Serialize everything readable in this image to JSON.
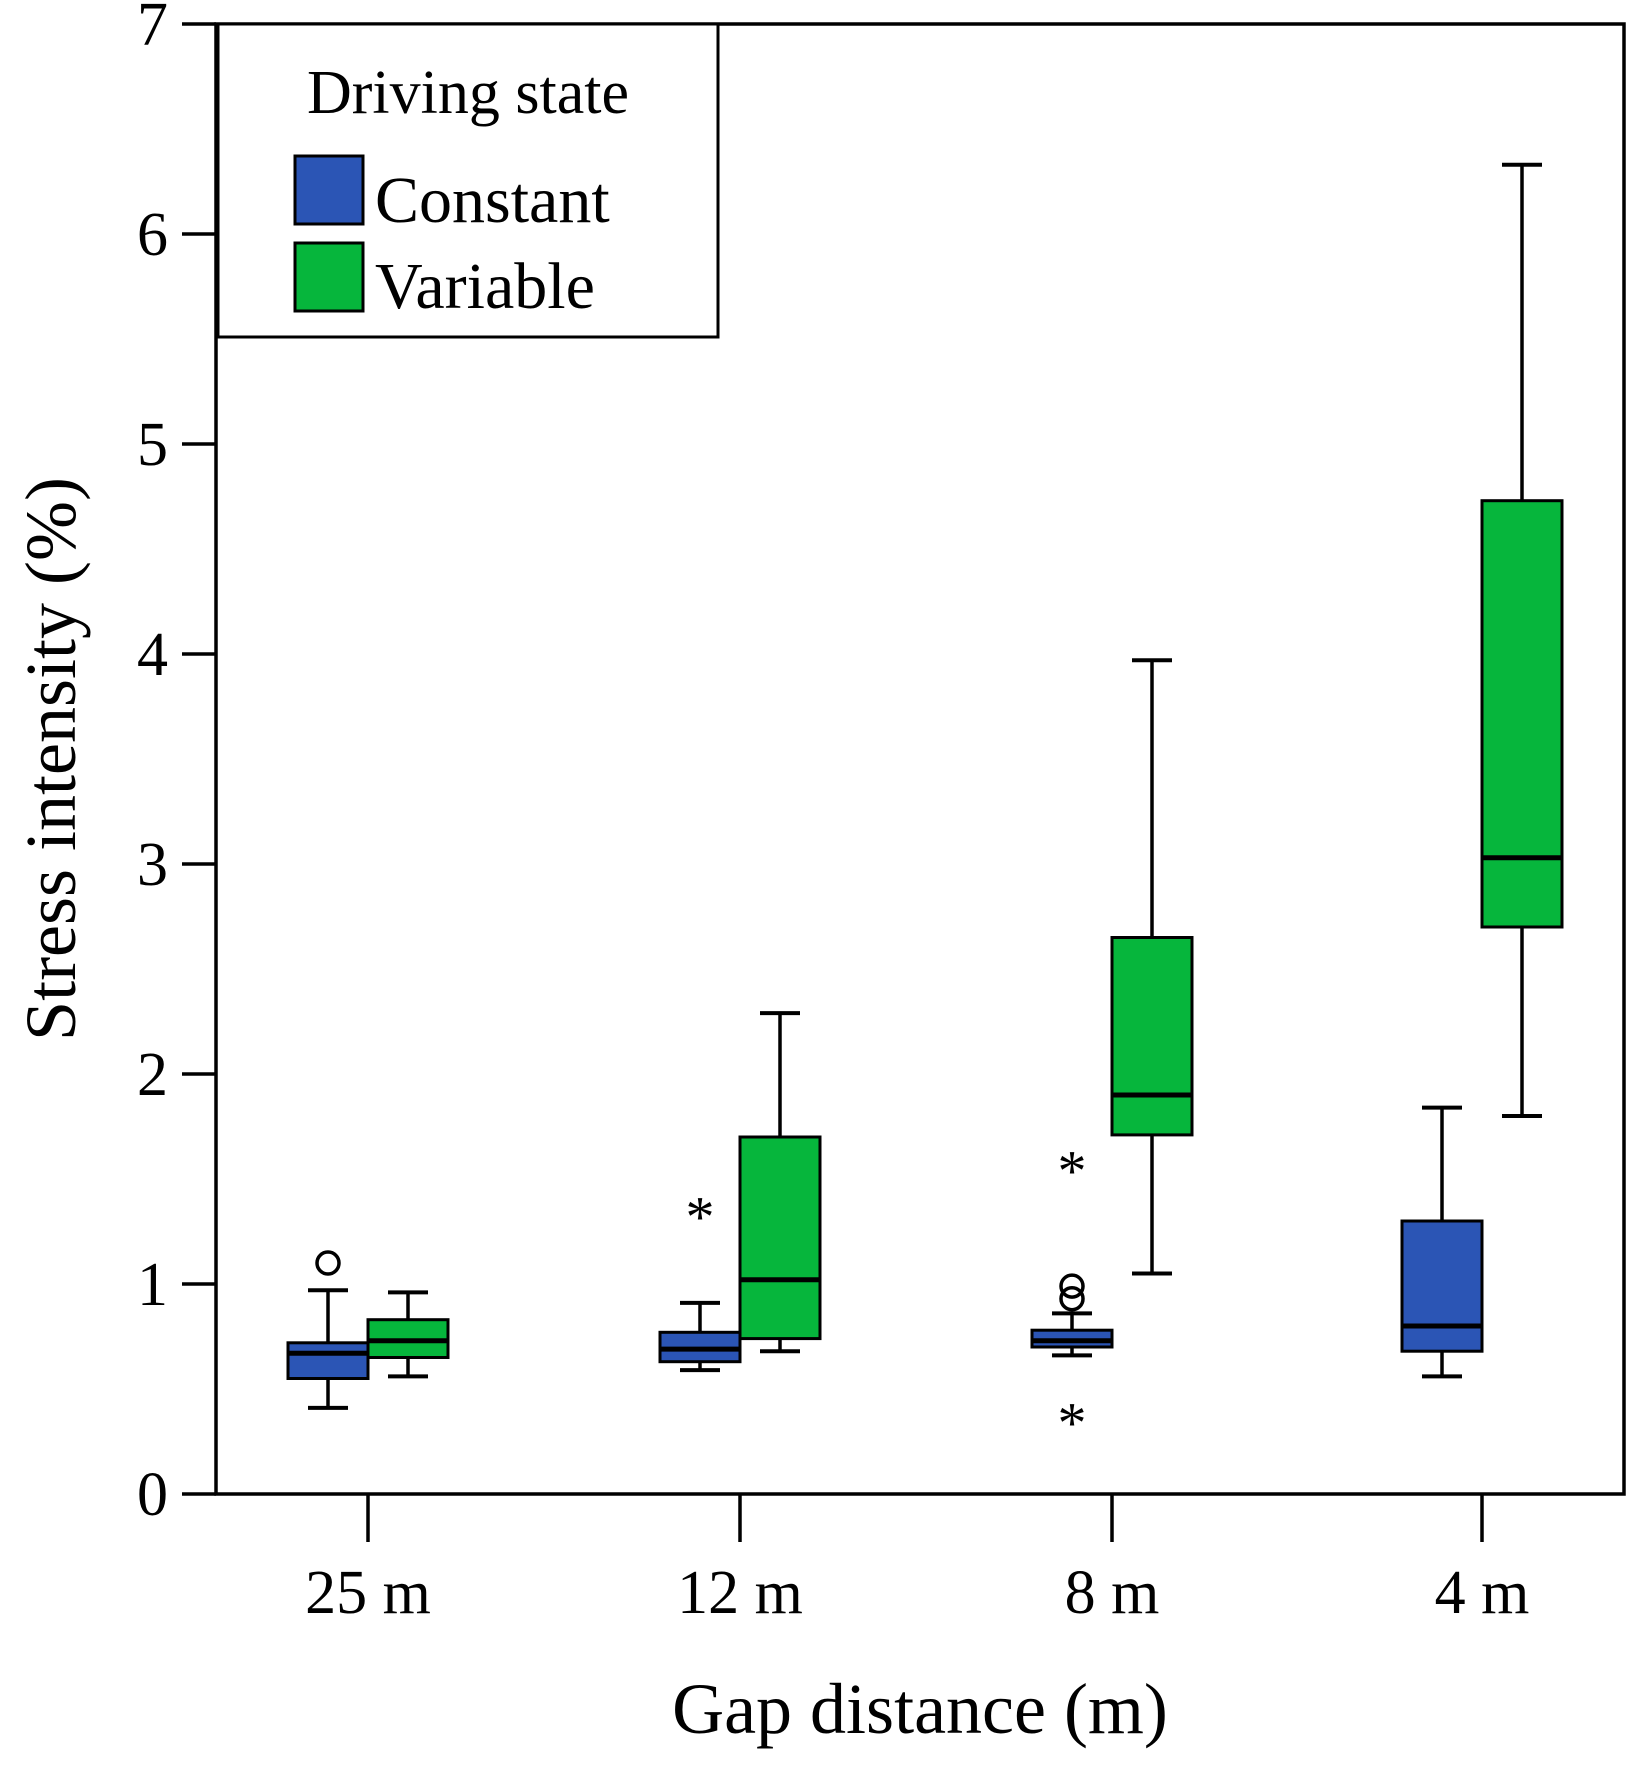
{
  "chart_data": {
    "type": "boxplot",
    "xlabel": "Gap distance (m)",
    "ylabel": "Stress intensity (%)",
    "ylim": [
      0,
      7
    ],
    "yticks": [
      "0",
      "1",
      "2",
      "3",
      "4",
      "5",
      "6",
      "7"
    ],
    "categories": [
      "25 m",
      "12 m",
      "8 m",
      "4 m"
    ],
    "legend": {
      "title": "Driving state",
      "position": "top-left",
      "entries": [
        "Constant",
        "Variable"
      ]
    },
    "grid": false,
    "series": [
      {
        "name": "Constant",
        "color": "#2b55b5",
        "boxes": [
          {
            "whisker_low": 0.41,
            "q1": 0.55,
            "median": 0.67,
            "q3": 0.72,
            "whisker_high": 0.97
          },
          {
            "whisker_low": 0.59,
            "q1": 0.63,
            "median": 0.69,
            "q3": 0.77,
            "whisker_high": 0.91
          },
          {
            "whisker_low": 0.66,
            "q1": 0.7,
            "median": 0.73,
            "q3": 0.78,
            "whisker_high": 0.86
          },
          {
            "whisker_low": 0.56,
            "q1": 0.68,
            "median": 0.8,
            "q3": 1.3,
            "whisker_high": 1.84
          }
        ],
        "outliers": [
          {
            "category": "25 m",
            "value": 1.1,
            "marker": "circle"
          },
          {
            "category": "12 m",
            "value": 1.35,
            "marker": "star"
          },
          {
            "category": "8 m",
            "value": 1.57,
            "marker": "star"
          },
          {
            "category": "8 m",
            "value": 0.99,
            "marker": "circle"
          },
          {
            "category": "8 m",
            "value": 0.93,
            "marker": "circle"
          },
          {
            "category": "8 m",
            "value": 0.37,
            "marker": "star"
          }
        ]
      },
      {
        "name": "Variable",
        "color": "#06b63c",
        "boxes": [
          {
            "whisker_low": 0.56,
            "q1": 0.65,
            "median": 0.73,
            "q3": 0.83,
            "whisker_high": 0.96
          },
          {
            "whisker_low": 0.68,
            "q1": 0.74,
            "median": 1.02,
            "q3": 1.7,
            "whisker_high": 2.29
          },
          {
            "whisker_low": 1.05,
            "q1": 1.71,
            "median": 1.9,
            "q3": 2.65,
            "whisker_high": 3.97
          },
          {
            "whisker_low": 1.8,
            "q1": 2.7,
            "median": 3.03,
            "q3": 4.73,
            "whisker_high": 6.33
          }
        ],
        "outliers": []
      }
    ]
  }
}
